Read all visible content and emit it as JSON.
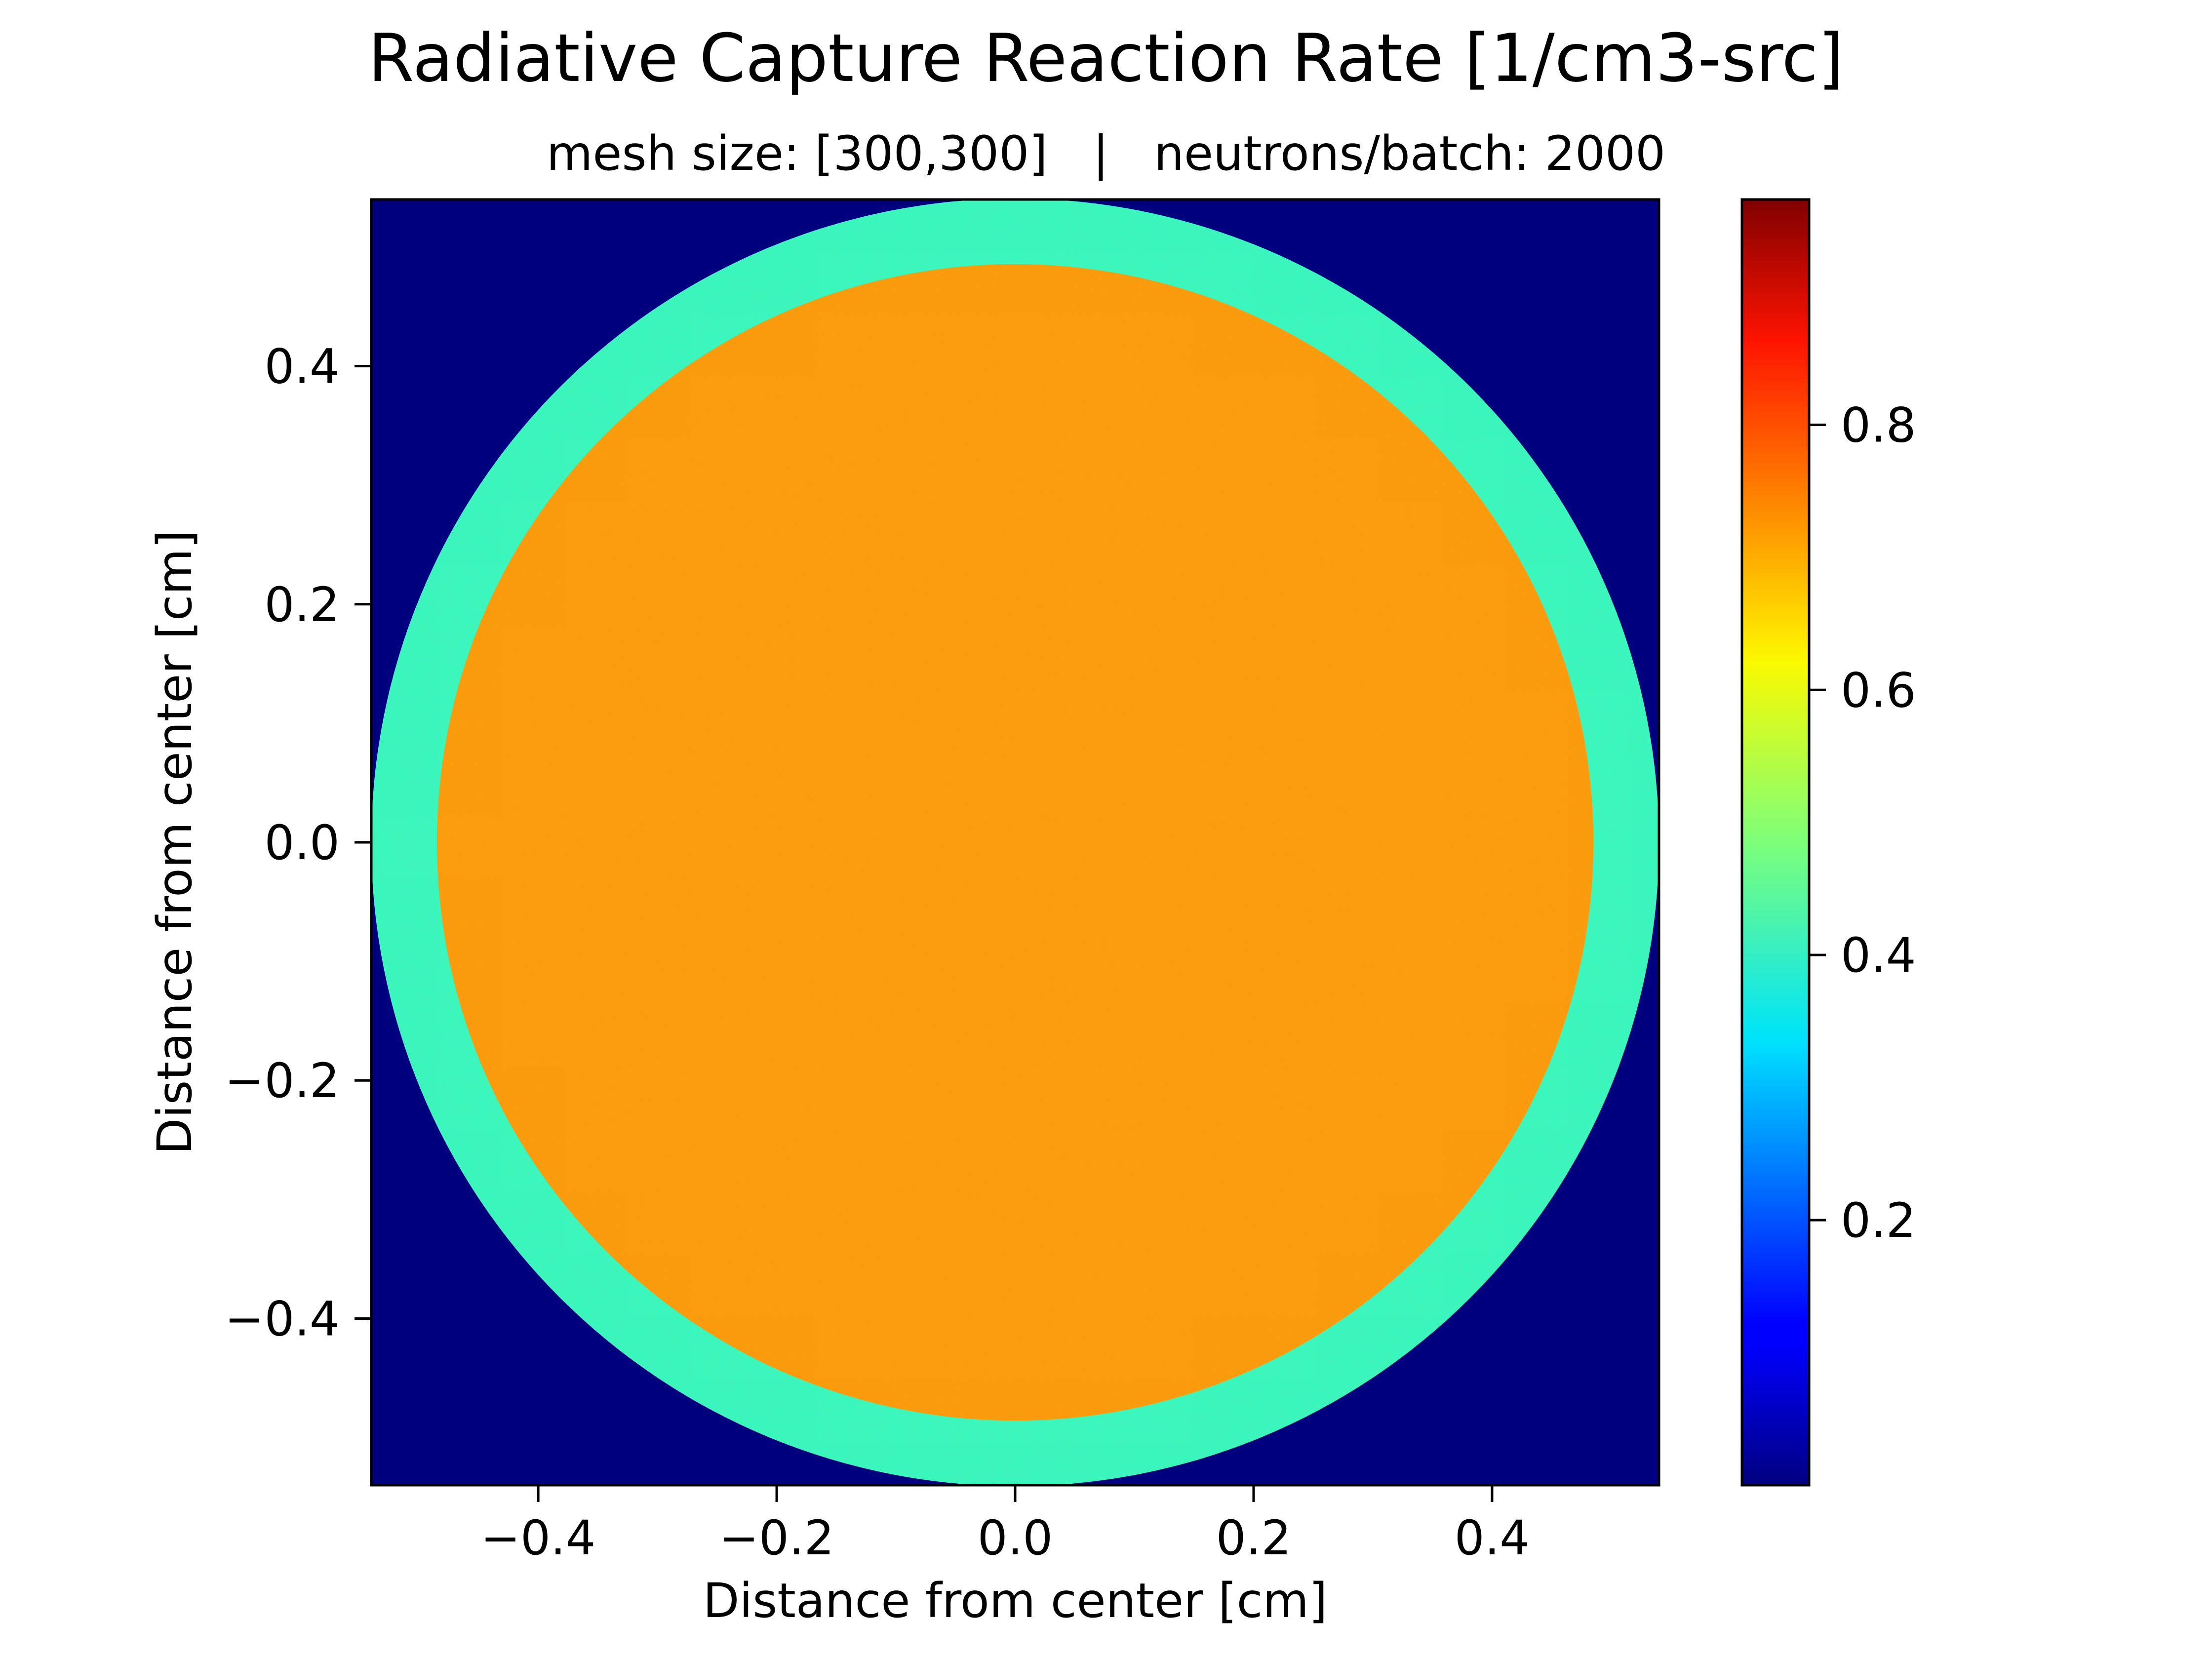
{
  "chart_data": {
    "type": "heatmap",
    "title": "Radiative Capture Reaction Rate [1/cm3-src]",
    "subtitle": "mesh size: [300,300]   |   neutrons/batch: 2000",
    "xlabel": "Distance from center [cm]",
    "ylabel": "Distance from center [cm]",
    "xlim": [
      -0.54,
      0.54
    ],
    "ylim": [
      -0.54,
      0.54
    ],
    "xticks": [
      -0.4,
      -0.2,
      0.0,
      0.2,
      0.4
    ],
    "yticks": [
      -0.4,
      -0.2,
      0.0,
      0.2,
      0.4
    ],
    "xtick_labels": [
      "−0.4",
      "−0.2",
      "0.0",
      "0.2",
      "0.4"
    ],
    "ytick_labels": [
      "−0.4",
      "−0.2",
      "0.0",
      "0.2",
      "0.4"
    ],
    "mesh_size": [
      300,
      300
    ],
    "colormap": "jet",
    "colorbar": {
      "range": [
        0.0,
        0.97
      ],
      "ticks": [
        0.2,
        0.4,
        0.6,
        0.8
      ],
      "tick_labels": [
        "0.2",
        "0.4",
        "0.6",
        "0.8"
      ]
    },
    "regions": [
      {
        "name": "background",
        "r_min": 0.54,
        "value": 0.0
      },
      {
        "name": "outer-ring",
        "r_min": 0.485,
        "r_max": 0.54,
        "value": 0.42
      },
      {
        "name": "inner-disk",
        "r_max": 0.485,
        "value": 0.74
      }
    ],
    "colors": {
      "background": "#00007f",
      "ring": "#34f9c4",
      "disk": "#fb9a0f",
      "disk_noise": "#f08400"
    }
  }
}
